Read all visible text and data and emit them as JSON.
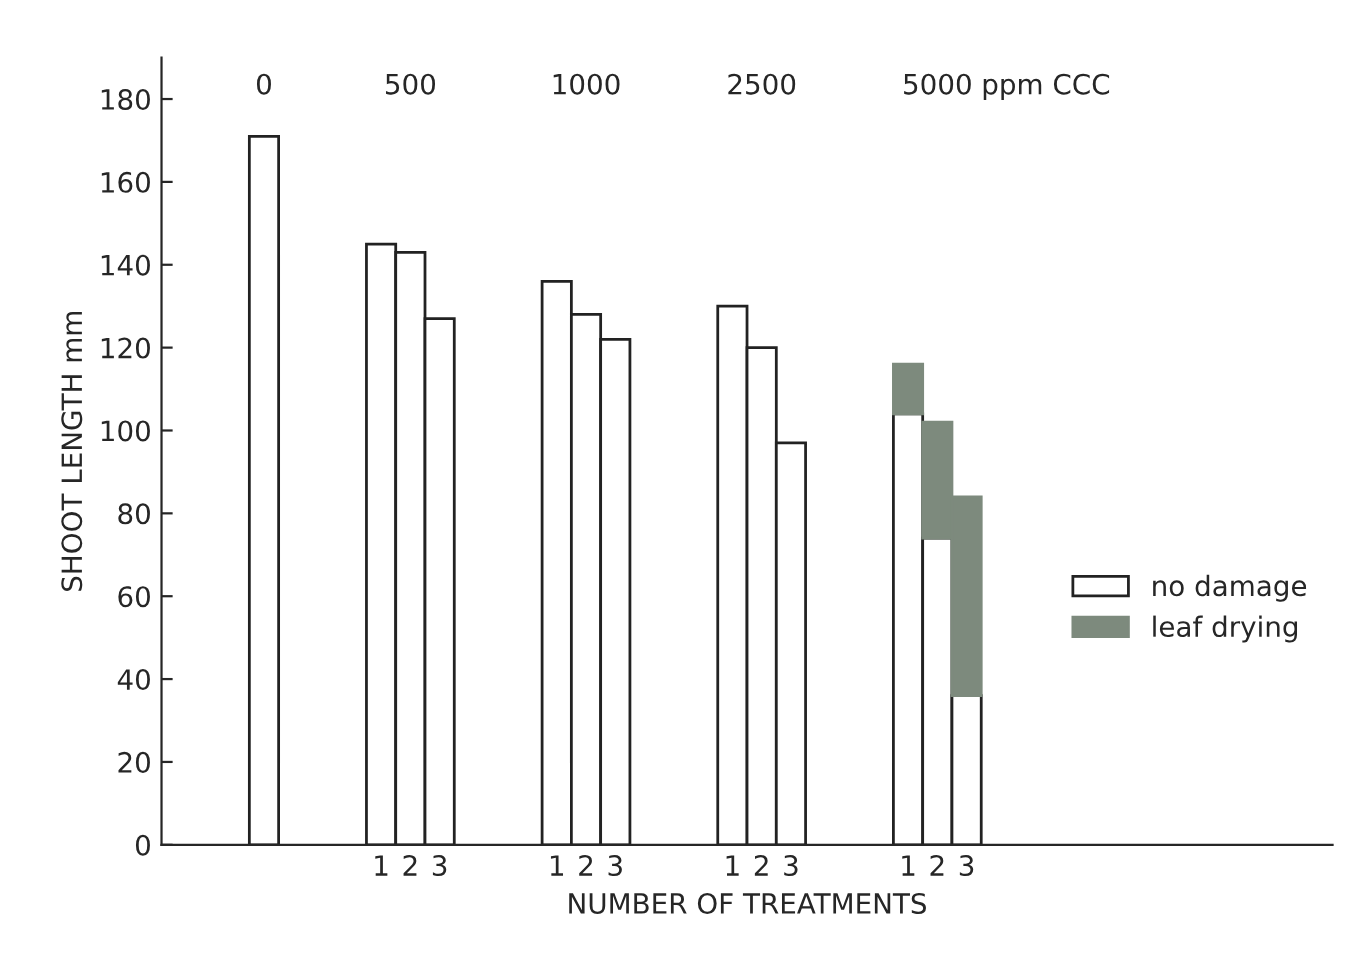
{
  "chart_data": {
    "type": "bar",
    "stacked": true,
    "xlabel": "NUMBER OF TREATMENTS",
    "ylabel": "SHOOT LENGTH mm",
    "annotations": [
      "0",
      "500",
      "1000",
      "2500",
      "5000",
      "ppm CCC"
    ],
    "categories": [
      null,
      null,
      null,
      null,
      null,
      null,
      null,
      "1",
      "2",
      "3",
      null,
      null,
      null,
      "1",
      "2",
      "3",
      null,
      null,
      null,
      "1",
      "2",
      "3",
      null,
      null,
      null,
      "1",
      "2",
      "3",
      null,
      null,
      null,
      null,
      null,
      null,
      null,
      null,
      null,
      null,
      null,
      null
    ],
    "series": [
      {
        "name": "no damage",
        "color": "#ffffff",
        "values": [
          null,
          null,
          null,
          171,
          null,
          null,
          null,
          145,
          143,
          127,
          null,
          null,
          null,
          136,
          128,
          122,
          null,
          null,
          null,
          130,
          120,
          97,
          null,
          null,
          null,
          104,
          74,
          36,
          null,
          null,
          null,
          null,
          null,
          null,
          null,
          null,
          null,
          null,
          null,
          null
        ]
      },
      {
        "name": "leaf drying",
        "color": "#7d8a7d",
        "values": [
          null,
          null,
          null,
          null,
          null,
          null,
          null,
          null,
          null,
          null,
          null,
          null,
          null,
          null,
          null,
          null,
          null,
          null,
          null,
          null,
          null,
          null,
          null,
          null,
          null,
          12,
          28,
          48,
          null,
          null,
          null,
          null,
          null,
          null,
          null,
          null,
          null,
          null,
          null,
          null
        ]
      }
    ],
    "ylim": [
      0,
      190
    ],
    "yticks": [
      0,
      20,
      40,
      60,
      80,
      100,
      120,
      140,
      160,
      180
    ],
    "grid": false,
    "legend": "right"
  }
}
